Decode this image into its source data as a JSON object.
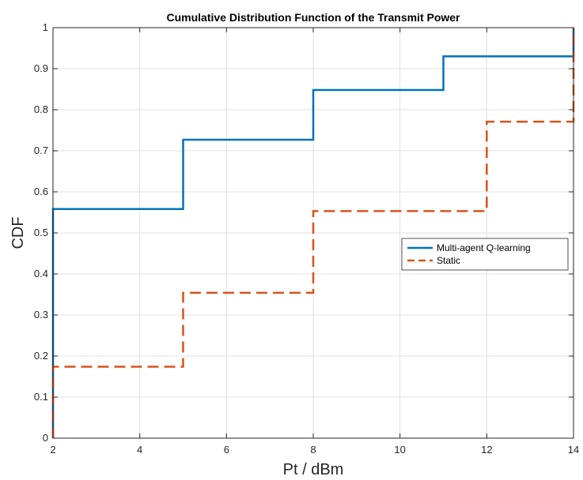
{
  "chart_data": {
    "type": "line",
    "title": "Cumulative Distribution Function of the Transmit Power",
    "xlabel": "Pt / dBm",
    "ylabel": "CDF",
    "xlim": [
      2,
      14
    ],
    "ylim": [
      0,
      1
    ],
    "xticks": [
      "2",
      "4",
      "6",
      "8",
      "10",
      "12",
      "14"
    ],
    "yticks": [
      "0",
      "0.1",
      "0.2",
      "0.3",
      "0.4",
      "0.5",
      "0.6",
      "0.7",
      "0.8",
      "0.9",
      "1"
    ],
    "xtick_values": [
      2,
      4,
      6,
      8,
      10,
      12,
      14
    ],
    "ytick_values": [
      0,
      0.1,
      0.2,
      0.3,
      0.4,
      0.5,
      0.6,
      0.7,
      0.8,
      0.9,
      1
    ],
    "grid": true,
    "legend_position": "right",
    "series": [
      {
        "name": "Multi-agent Q-learning",
        "color": "#0072BD",
        "style": "solid",
        "step": true,
        "x": [
          2,
          2,
          5,
          5,
          8,
          8,
          11,
          11,
          14,
          14
        ],
        "y": [
          0,
          0.558,
          0.558,
          0.727,
          0.727,
          0.848,
          0.848,
          0.93,
          0.93,
          1.0
        ]
      },
      {
        "name": "Static",
        "color": "#D95319",
        "style": "dashed",
        "step": true,
        "x": [
          2,
          2,
          5,
          5,
          8,
          8,
          12,
          12,
          14,
          14
        ],
        "y": [
          0,
          0.174,
          0.174,
          0.354,
          0.354,
          0.553,
          0.553,
          0.771,
          0.771,
          1.0
        ]
      }
    ]
  }
}
